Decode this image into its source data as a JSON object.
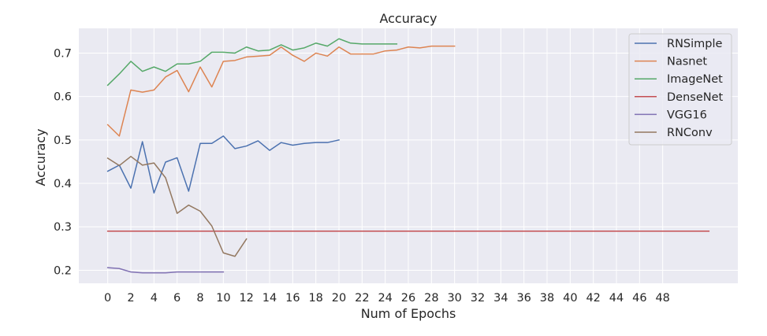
{
  "chart_data": {
    "type": "line",
    "title": "Accuracy",
    "xlabel": "Num of Epochs",
    "ylabel": "Accuracy",
    "xlim": [
      -2.5,
      54.5
    ],
    "ylim": [
      0.17,
      0.757
    ],
    "xticks": [
      0,
      2,
      4,
      6,
      8,
      10,
      12,
      14,
      16,
      18,
      20,
      22,
      24,
      26,
      28,
      30,
      32,
      34,
      36,
      38,
      40,
      42,
      44,
      46,
      48
    ],
    "yticks": [
      0.2,
      0.3,
      0.4,
      0.5,
      0.6,
      0.7
    ],
    "ytick_labels": [
      "0.2",
      "0.3",
      "0.4",
      "0.5",
      "0.6",
      "0.7"
    ],
    "grid": true,
    "legend_position": "top-right",
    "series": [
      {
        "name": "RNSimple",
        "color": "#4c72b0",
        "x": [
          0,
          1,
          2,
          3,
          4,
          5,
          6,
          7,
          8,
          9,
          10,
          11,
          12,
          13,
          14,
          15,
          16,
          17,
          18,
          19,
          20
        ],
        "y": [
          0.428,
          0.442,
          0.389,
          0.496,
          0.378,
          0.449,
          0.459,
          0.382,
          0.492,
          0.492,
          0.509,
          0.48,
          0.486,
          0.498,
          0.476,
          0.494,
          0.488,
          0.492,
          0.494,
          0.494,
          0.5
        ]
      },
      {
        "name": "Nasnet",
        "color": "#dd8452",
        "x": [
          0,
          1,
          2,
          3,
          4,
          5,
          6,
          7,
          8,
          9,
          10,
          11,
          12,
          13,
          14,
          15,
          16,
          17,
          18,
          19,
          20,
          21,
          22,
          23,
          24,
          25,
          26,
          27,
          28,
          29,
          30
        ],
        "y": [
          0.535,
          0.509,
          0.615,
          0.61,
          0.615,
          0.645,
          0.66,
          0.611,
          0.668,
          0.622,
          0.681,
          0.683,
          0.691,
          0.693,
          0.695,
          0.714,
          0.695,
          0.681,
          0.7,
          0.693,
          0.714,
          0.698,
          0.698,
          0.698,
          0.705,
          0.707,
          0.714,
          0.712,
          0.716,
          0.716,
          0.716
        ]
      },
      {
        "name": "ImageNet",
        "color": "#55a868",
        "x": [
          0,
          1,
          2,
          3,
          4,
          5,
          6,
          7,
          8,
          9,
          10,
          11,
          12,
          13,
          14,
          15,
          16,
          17,
          18,
          19,
          20,
          21,
          22,
          23,
          24,
          25
        ],
        "y": [
          0.626,
          0.652,
          0.681,
          0.658,
          0.668,
          0.658,
          0.675,
          0.675,
          0.681,
          0.702,
          0.702,
          0.7,
          0.714,
          0.705,
          0.707,
          0.719,
          0.707,
          0.712,
          0.723,
          0.716,
          0.733,
          0.723,
          0.721,
          0.721,
          0.721,
          0.721
        ]
      },
      {
        "name": "DenseNet",
        "color": "#c44e52",
        "x": [
          0,
          52
        ],
        "y": [
          0.29,
          0.29
        ]
      },
      {
        "name": "VGG16",
        "color": "#8172b3",
        "x": [
          0,
          1,
          2,
          3,
          4,
          5,
          6,
          7,
          8,
          9,
          10
        ],
        "y": [
          0.206,
          0.204,
          0.196,
          0.194,
          0.194,
          0.194,
          0.196,
          0.196,
          0.196,
          0.196,
          0.196
        ]
      },
      {
        "name": "RNConv",
        "color": "#937860",
        "x": [
          0,
          1,
          2,
          3,
          4,
          5,
          6,
          7,
          8,
          9,
          10,
          11,
          12
        ],
        "y": [
          0.458,
          0.441,
          0.462,
          0.442,
          0.447,
          0.413,
          0.331,
          0.35,
          0.336,
          0.302,
          0.24,
          0.232,
          0.272
        ]
      }
    ]
  }
}
